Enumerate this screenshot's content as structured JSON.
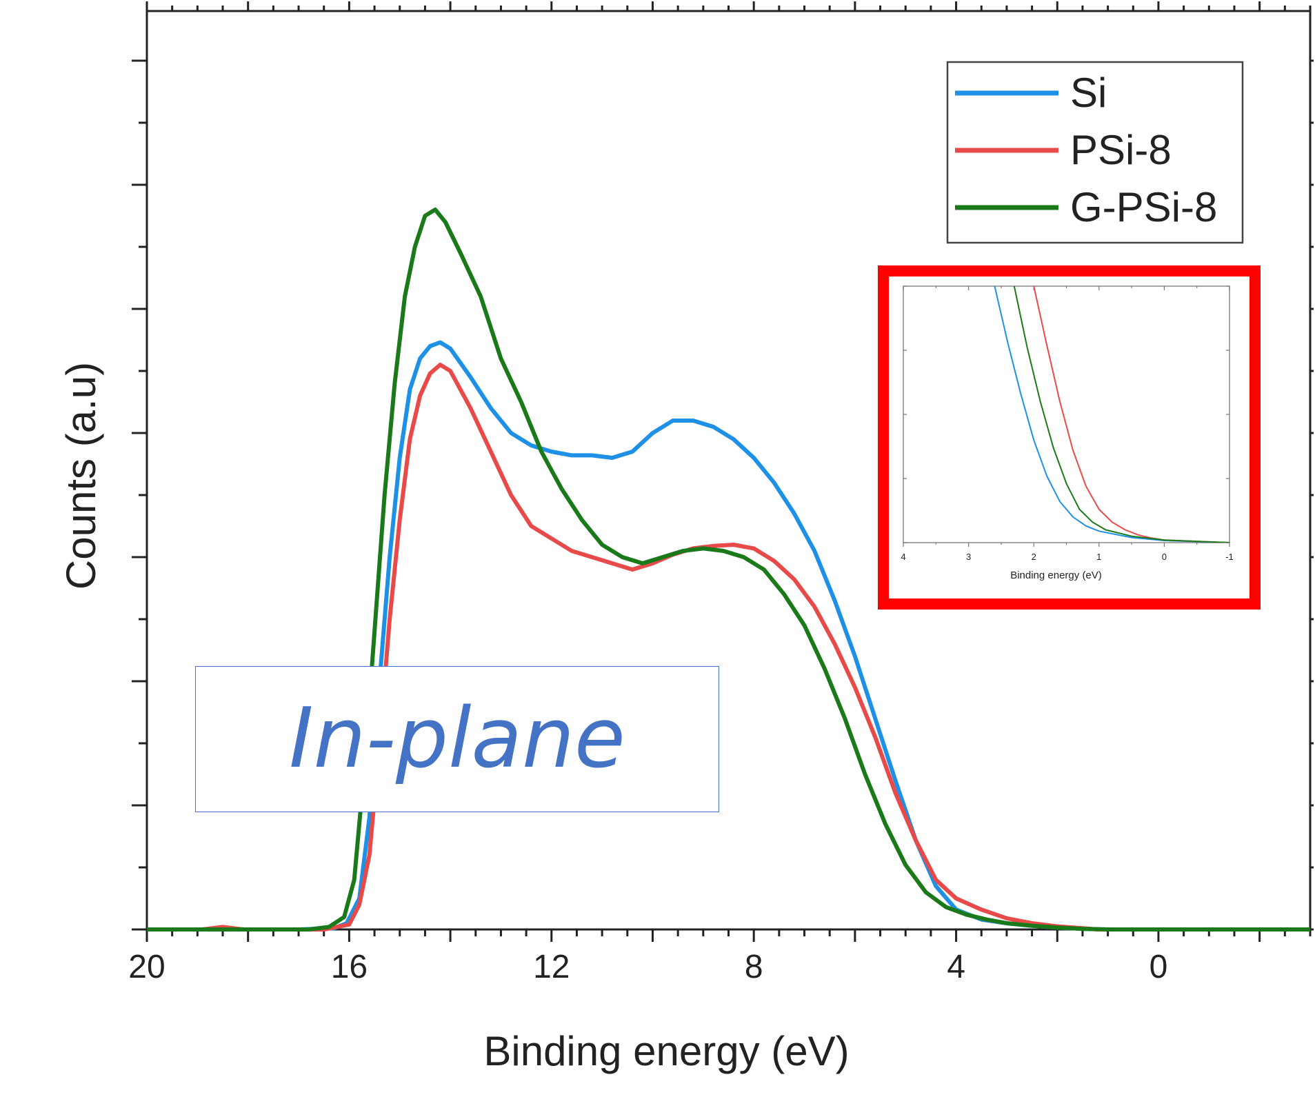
{
  "chart_data": [
    {
      "type": "line",
      "title": "",
      "xlabel": "Binding energy (eV)",
      "ylabel": "Counts (a.u)",
      "xlim": [
        20,
        -3
      ],
      "x_reversed": true,
      "ylim": [
        0,
        7.4
      ],
      "x_ticks": [
        20,
        16,
        12,
        8,
        4,
        0
      ],
      "y_tick_labels_shown": false,
      "grid": false,
      "legend_position": "top-right",
      "annotation": "In-plane",
      "series": [
        {
          "name": "Si",
          "color": "#1e90e6",
          "points": [
            [
              20,
              0
            ],
            [
              17,
              0
            ],
            [
              16.3,
              0.01
            ],
            [
              16.05,
              0.05
            ],
            [
              15.8,
              0.25
            ],
            [
              15.6,
              0.9
            ],
            [
              15.4,
              2.0
            ],
            [
              15.2,
              3.0
            ],
            [
              15.0,
              3.8
            ],
            [
              14.8,
              4.35
            ],
            [
              14.6,
              4.6
            ],
            [
              14.4,
              4.7
            ],
            [
              14.2,
              4.73
            ],
            [
              14.0,
              4.68
            ],
            [
              13.6,
              4.45
            ],
            [
              13.2,
              4.2
            ],
            [
              12.8,
              4.0
            ],
            [
              12.4,
              3.9
            ],
            [
              12.0,
              3.85
            ],
            [
              11.6,
              3.82
            ],
            [
              11.2,
              3.82
            ],
            [
              10.8,
              3.8
            ],
            [
              10.4,
              3.85
            ],
            [
              10.0,
              4.0
            ],
            [
              9.6,
              4.1
            ],
            [
              9.2,
              4.1
            ],
            [
              8.8,
              4.05
            ],
            [
              8.4,
              3.95
            ],
            [
              8.0,
              3.8
            ],
            [
              7.6,
              3.6
            ],
            [
              7.2,
              3.35
            ],
            [
              6.8,
              3.05
            ],
            [
              6.4,
              2.65
            ],
            [
              6.0,
              2.2
            ],
            [
              5.6,
              1.7
            ],
            [
              5.2,
              1.2
            ],
            [
              4.8,
              0.72
            ],
            [
              4.4,
              0.35
            ],
            [
              4.0,
              0.16
            ],
            [
              3.5,
              0.08
            ],
            [
              3.0,
              0.05
            ],
            [
              2.5,
              0.03
            ],
            [
              2.0,
              0.015
            ],
            [
              1.5,
              0.005
            ],
            [
              1.0,
              0
            ],
            [
              0,
              0
            ],
            [
              -3,
              0
            ]
          ]
        },
        {
          "name": "PSi-8",
          "color": "#e84a4a",
          "points": [
            [
              20,
              0
            ],
            [
              18.9,
              0
            ],
            [
              18.5,
              0.02
            ],
            [
              18.1,
              0
            ],
            [
              16.5,
              0
            ],
            [
              16.0,
              0.04
            ],
            [
              15.8,
              0.2
            ],
            [
              15.6,
              0.6
            ],
            [
              15.4,
              1.5
            ],
            [
              15.2,
              2.5
            ],
            [
              15.0,
              3.3
            ],
            [
              14.8,
              3.95
            ],
            [
              14.6,
              4.3
            ],
            [
              14.4,
              4.48
            ],
            [
              14.2,
              4.55
            ],
            [
              14.0,
              4.5
            ],
            [
              13.6,
              4.2
            ],
            [
              13.2,
              3.85
            ],
            [
              12.8,
              3.5
            ],
            [
              12.4,
              3.25
            ],
            [
              12.0,
              3.15
            ],
            [
              11.6,
              3.05
            ],
            [
              11.2,
              3.0
            ],
            [
              10.8,
              2.95
            ],
            [
              10.4,
              2.9
            ],
            [
              10.0,
              2.95
            ],
            [
              9.6,
              3.02
            ],
            [
              9.2,
              3.07
            ],
            [
              8.8,
              3.09
            ],
            [
              8.4,
              3.1
            ],
            [
              8.0,
              3.07
            ],
            [
              7.6,
              2.97
            ],
            [
              7.2,
              2.82
            ],
            [
              6.8,
              2.6
            ],
            [
              6.4,
              2.3
            ],
            [
              6.0,
              1.95
            ],
            [
              5.6,
              1.55
            ],
            [
              5.2,
              1.1
            ],
            [
              4.8,
              0.72
            ],
            [
              4.4,
              0.4
            ],
            [
              4.0,
              0.25
            ],
            [
              3.5,
              0.16
            ],
            [
              3.0,
              0.09
            ],
            [
              2.5,
              0.05
            ],
            [
              2.0,
              0.025
            ],
            [
              1.5,
              0.01
            ],
            [
              1.2,
              0
            ],
            [
              0,
              0
            ],
            [
              -3,
              0
            ]
          ]
        },
        {
          "name": "G-PSi-8",
          "color": "#1a7a1a",
          "points": [
            [
              20,
              0
            ],
            [
              16.8,
              0
            ],
            [
              16.4,
              0.02
            ],
            [
              16.1,
              0.1
            ],
            [
              15.9,
              0.4
            ],
            [
              15.7,
              1.3
            ],
            [
              15.5,
              2.4
            ],
            [
              15.3,
              3.5
            ],
            [
              15.1,
              4.4
            ],
            [
              14.9,
              5.1
            ],
            [
              14.7,
              5.5
            ],
            [
              14.5,
              5.75
            ],
            [
              14.3,
              5.8
            ],
            [
              14.1,
              5.7
            ],
            [
              13.8,
              5.45
            ],
            [
              13.4,
              5.1
            ],
            [
              13.0,
              4.6
            ],
            [
              12.6,
              4.25
            ],
            [
              12.2,
              3.85
            ],
            [
              11.8,
              3.55
            ],
            [
              11.4,
              3.3
            ],
            [
              11.0,
              3.1
            ],
            [
              10.6,
              3.0
            ],
            [
              10.2,
              2.95
            ],
            [
              9.8,
              3.0
            ],
            [
              9.4,
              3.05
            ],
            [
              9.0,
              3.07
            ],
            [
              8.6,
              3.05
            ],
            [
              8.2,
              3.0
            ],
            [
              7.8,
              2.9
            ],
            [
              7.4,
              2.7
            ],
            [
              7.0,
              2.45
            ],
            [
              6.6,
              2.1
            ],
            [
              6.2,
              1.7
            ],
            [
              5.8,
              1.25
            ],
            [
              5.4,
              0.85
            ],
            [
              5.0,
              0.52
            ],
            [
              4.6,
              0.3
            ],
            [
              4.2,
              0.18
            ],
            [
              3.8,
              0.12
            ],
            [
              3.4,
              0.08
            ],
            [
              3.0,
              0.05
            ],
            [
              2.5,
              0.03
            ],
            [
              2.0,
              0.015
            ],
            [
              1.5,
              0.005
            ],
            [
              1.0,
              0
            ],
            [
              0,
              0
            ],
            [
              -3,
              0
            ]
          ]
        }
      ]
    },
    {
      "type": "line",
      "title": "",
      "xlabel": "Binding energy (eV)",
      "ylabel": "",
      "xlim": [
        4,
        -1
      ],
      "x_reversed": true,
      "ylim": [
        0,
        1
      ],
      "x_ticks": [
        4,
        3,
        2,
        1,
        0,
        -1
      ],
      "grid": false,
      "frame_color": "#ff0000",
      "series": [
        {
          "color": "#1e90e6",
          "points": [
            [
              2.6,
              1.0
            ],
            [
              2.4,
              0.78
            ],
            [
              2.2,
              0.58
            ],
            [
              2.0,
              0.4
            ],
            [
              1.8,
              0.26
            ],
            [
              1.6,
              0.16
            ],
            [
              1.4,
              0.1
            ],
            [
              1.2,
              0.065
            ],
            [
              1.0,
              0.045
            ],
            [
              0.5,
              0.02
            ],
            [
              0,
              0.008
            ],
            [
              -1,
              0
            ]
          ]
        },
        {
          "color": "#e84a4a",
          "points": [
            [
              2.0,
              1.0
            ],
            [
              1.8,
              0.77
            ],
            [
              1.6,
              0.55
            ],
            [
              1.4,
              0.36
            ],
            [
              1.2,
              0.22
            ],
            [
              1.0,
              0.13
            ],
            [
              0.8,
              0.08
            ],
            [
              0.6,
              0.05
            ],
            [
              0.4,
              0.03
            ],
            [
              0.2,
              0.018
            ],
            [
              0,
              0.01
            ],
            [
              -1,
              0
            ]
          ]
        },
        {
          "color": "#1a7a1a",
          "points": [
            [
              2.3,
              1.0
            ],
            [
              2.1,
              0.76
            ],
            [
              1.9,
              0.55
            ],
            [
              1.7,
              0.37
            ],
            [
              1.5,
              0.23
            ],
            [
              1.3,
              0.13
            ],
            [
              1.1,
              0.08
            ],
            [
              0.9,
              0.05
            ],
            [
              0.5,
              0.025
            ],
            [
              0,
              0.01
            ],
            [
              -1,
              0
            ]
          ]
        }
      ]
    }
  ]
}
